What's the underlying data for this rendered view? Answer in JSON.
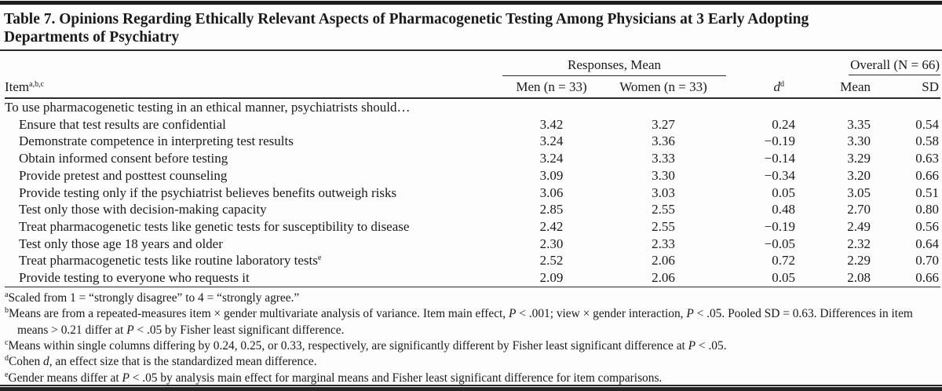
{
  "title": "Table 7. Opinions Regarding Ethically Relevant Aspects of Pharmacogenetic Testing Among Physicians at 3 Early Adopting Departments of Psychiatry",
  "header": {
    "item_label": "Item",
    "item_superscript": "a,b,c",
    "responses_group": "Responses, Mean",
    "overall_group": "Overall (N = 66)",
    "col_men": "Men (n = 33)",
    "col_women": "Women (n = 33)",
    "col_d": "d",
    "col_d_superscript": "d",
    "col_mean": "Mean",
    "col_sd": "SD"
  },
  "section_row": "To use pharmacogenetic testing in an ethical manner, psychiatrists should…",
  "rows": [
    {
      "item": "Ensure that test results are confidential",
      "men": "3.42",
      "women": "3.27",
      "d": "0.24",
      "mean": "3.35",
      "sd": "0.54"
    },
    {
      "item": "Demonstrate competence in interpreting test results",
      "men": "3.24",
      "women": "3.36",
      "d": "−0.19",
      "mean": "3.30",
      "sd": "0.58"
    },
    {
      "item": "Obtain informed consent before testing",
      "men": "3.24",
      "women": "3.33",
      "d": "−0.14",
      "mean": "3.29",
      "sd": "0.63"
    },
    {
      "item": "Provide pretest and posttest counseling",
      "men": "3.09",
      "women": "3.30",
      "d": "−0.34",
      "mean": "3.20",
      "sd": "0.66"
    },
    {
      "item": "Provide testing only if the psychiatrist believes benefits outweigh risks",
      "men": "3.06",
      "women": "3.03",
      "d": "0.05",
      "mean": "3.05",
      "sd": "0.51"
    },
    {
      "item": "Test only those with decision-making capacity",
      "men": "2.85",
      "women": "2.55",
      "d": "0.48",
      "mean": "2.70",
      "sd": "0.80"
    },
    {
      "item": "Treat pharmacogenetic tests like genetic tests for susceptibility to disease",
      "men": "2.42",
      "women": "2.55",
      "d": "−0.19",
      "mean": "2.49",
      "sd": "0.56"
    },
    {
      "item": "Test only those age 18 years and older",
      "men": "2.30",
      "women": "2.33",
      "d": "−0.05",
      "mean": "2.32",
      "sd": "0.64"
    },
    {
      "item": "Treat pharmacogenetic tests like routine laboratory tests",
      "sup": "e",
      "men": "2.52",
      "women": "2.06",
      "d": "0.72",
      "mean": "2.29",
      "sd": "0.70"
    },
    {
      "item": "Provide testing to everyone who requests it",
      "men": "2.09",
      "women": "2.06",
      "d": "0.05",
      "mean": "2.08",
      "sd": "0.66"
    }
  ],
  "footnotes": [
    {
      "marker": "a",
      "segments": [
        {
          "t": "Scaled from 1 = “strongly disagree” to 4 = “strongly agree.”"
        }
      ]
    },
    {
      "marker": "b",
      "segments": [
        {
          "t": "Means are from a repeated-measures item × gender multivariate analysis of variance. Item main effect, "
        },
        {
          "t": "P",
          "i": true
        },
        {
          "t": " < .001; view × gender interaction, "
        },
        {
          "t": "P",
          "i": true
        },
        {
          "t": " < .05. Pooled SD = 0.63. Differences in item means > 0.21 differ at "
        },
        {
          "t": "P",
          "i": true
        },
        {
          "t": " < .05 by Fisher least significant difference."
        }
      ]
    },
    {
      "marker": "c",
      "segments": [
        {
          "t": "Means within single columns differing by 0.24, 0.25, or 0.33, respectively, are significantly different by Fisher least significant difference at "
        },
        {
          "t": "P",
          "i": true
        },
        {
          "t": " < .05."
        }
      ]
    },
    {
      "marker": "d",
      "segments": [
        {
          "t": "Cohen "
        },
        {
          "t": "d",
          "i": true
        },
        {
          "t": ", an effect size that is the standardized mean difference."
        }
      ]
    },
    {
      "marker": "e",
      "segments": [
        {
          "t": "Gender means differ at "
        },
        {
          "t": "P",
          "i": true
        },
        {
          "t": " < .05 by analysis main effect for marginal means and Fisher least significant difference for item comparisons."
        }
      ]
    }
  ]
}
